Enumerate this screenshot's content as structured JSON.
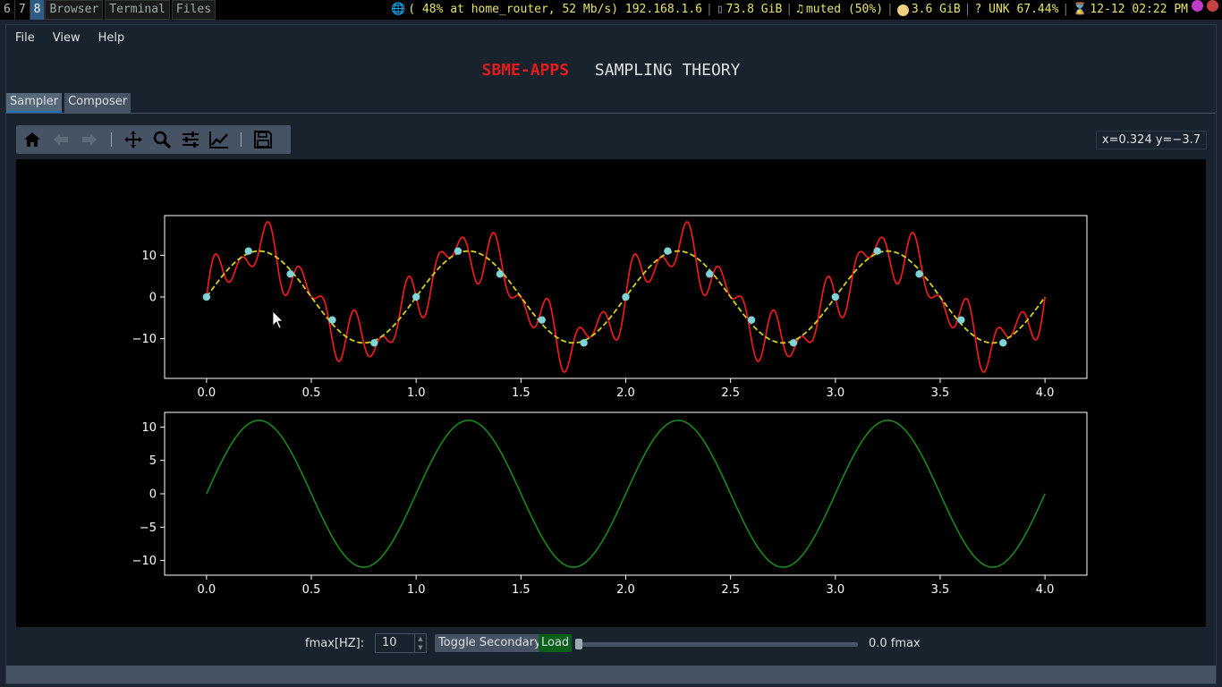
{
  "topbar": {
    "workspaces": [
      "6",
      "7",
      "8"
    ],
    "active_workspace": "8",
    "windows": [
      "Browser",
      "Terminal",
      "Files"
    ],
    "network": "( 48% at home_router, 52 Mb/s) 192.168.1.6",
    "disk": "73.8 GiB",
    "volume": "muted (50%)",
    "memory": "3.6 GiB",
    "battery": "? UNK 67.44%",
    "datetime": "12-12 02:22 PM"
  },
  "menu": {
    "file": "File",
    "view": "View",
    "help": "Help"
  },
  "title": {
    "brand": "SBME-APPS",
    "subtitle": "SAMPLING THEORY"
  },
  "tabs": {
    "sampler": "Sampler",
    "composer": "Composer"
  },
  "toolbar_icons": [
    "home-icon",
    "back-icon",
    "forward-icon",
    "pan-icon",
    "zoom-icon",
    "configure-subplots-icon",
    "edit-axis-icon",
    "save-icon"
  ],
  "coords": "x=0.324 y=−3.7",
  "controls": {
    "fmax_label": "fmax[HZ]:",
    "fmax_value": "10",
    "toggle_label": "Toggle Secondary",
    "load_label": "Load",
    "slider_value_text": "0.0 fmax",
    "slider_fraction": 0.0
  },
  "colors": {
    "signal": "#ff1a1a",
    "reconstructed": "#d6d11b",
    "samples": "#7fd4d8",
    "secondary": "#1a8a1a",
    "brand": "#e31b1b",
    "load_button": "#07601a"
  },
  "chart_data": [
    {
      "type": "line",
      "title": "",
      "xlabel": "",
      "ylabel": "",
      "xlim": [
        -0.2,
        4.2
      ],
      "ylim": [
        -19.5,
        19.5
      ],
      "xticks": [
        "0.0",
        "0.5",
        "1.0",
        "1.5",
        "2.0",
        "2.5",
        "3.0",
        "3.5",
        "4.0"
      ],
      "yticks": [
        "10",
        "0",
        "−10"
      ],
      "xtick_values": [
        0,
        0.5,
        1,
        1.5,
        2,
        2.5,
        3,
        3.5,
        4
      ],
      "ytick_values": [
        10,
        0,
        -10
      ],
      "series": [
        {
          "style": "solid",
          "color": "#ff1a1a",
          "x_range": [
            0,
            4
          ],
          "components": [
            {
              "amp": 11,
              "freq": 1
            },
            {
              "amp": 4,
              "freq": 4.5
            },
            {
              "amp": 4,
              "freq": 7.5
            }
          ]
        },
        {
          "style": "dashed",
          "color": "#d6d11b",
          "x_range": [
            0,
            4
          ],
          "components": [
            {
              "amp": 11,
              "freq": 1
            }
          ]
        },
        {
          "style": "points",
          "color": "#7fd4d8",
          "x": [
            0,
            0.2,
            0.4,
            0.6,
            0.8,
            1.0,
            1.2,
            1.4,
            1.6,
            1.8,
            2.0,
            2.2,
            2.4,
            2.6,
            2.8,
            3.0,
            3.2,
            3.4,
            3.6,
            3.8
          ],
          "y": [
            0,
            11,
            5.5,
            -5.5,
            -11,
            0,
            11,
            5.5,
            -5.5,
            -11,
            0,
            11,
            5.5,
            -5.5,
            -11,
            0,
            11,
            5.5,
            -5.5,
            -11
          ]
        }
      ]
    },
    {
      "type": "line",
      "title": "",
      "xlabel": "",
      "ylabel": "",
      "xlim": [
        -0.2,
        4.2
      ],
      "ylim": [
        -12.2,
        12.2
      ],
      "xticks": [
        "0.0",
        "0.5",
        "1.0",
        "1.5",
        "2.0",
        "2.5",
        "3.0",
        "3.5",
        "4.0"
      ],
      "yticks": [
        "10",
        "5",
        "0",
        "−5",
        "−10"
      ],
      "xtick_values": [
        0,
        0.5,
        1,
        1.5,
        2,
        2.5,
        3,
        3.5,
        4
      ],
      "ytick_values": [
        10,
        5,
        0,
        -5,
        -10
      ],
      "series": [
        {
          "style": "solid",
          "color": "#1a8a1a",
          "x_range": [
            0,
            4
          ],
          "components": [
            {
              "amp": 11,
              "freq": 1
            }
          ]
        }
      ]
    }
  ]
}
